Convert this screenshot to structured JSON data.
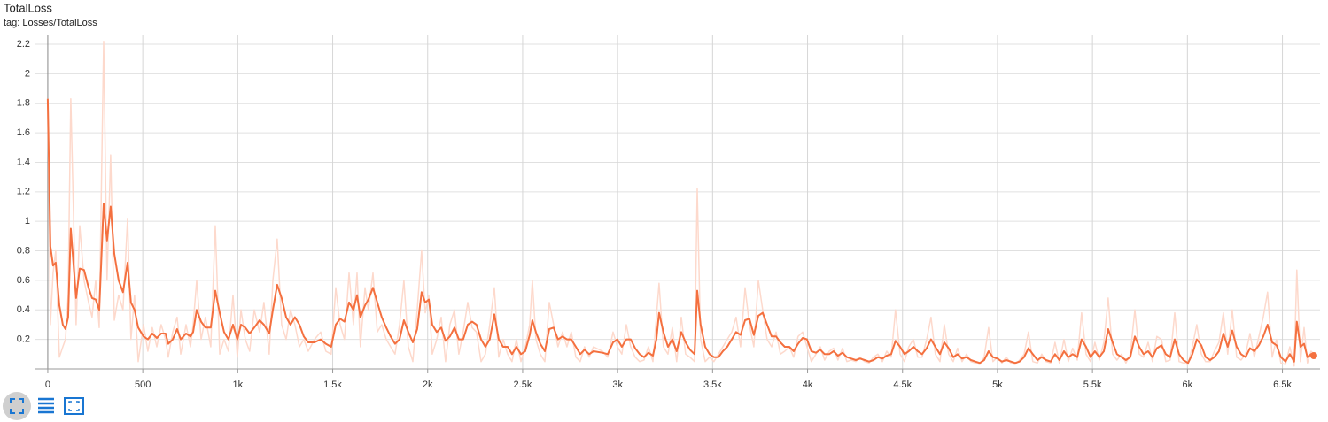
{
  "chart_data": {
    "type": "line",
    "title": "TotalLoss",
    "subtitle": "tag: Losses/TotalLoss",
    "grid": true,
    "xlim": [
      -65,
      6698
    ],
    "ylim": [
      0,
      2.26
    ],
    "xticks": [
      0,
      500,
      {
        "value": 1000,
        "label": "1k"
      },
      {
        "value": 1500,
        "label": "1.5k"
      },
      {
        "value": 2000,
        "label": "2k"
      },
      {
        "value": 2500,
        "label": "2.5k"
      },
      {
        "value": 3000,
        "label": "3k"
      },
      {
        "value": 3500,
        "label": "3.5k"
      },
      {
        "value": 4000,
        "label": "4k"
      },
      {
        "value": 4500,
        "label": "4.5k"
      },
      {
        "value": 5000,
        "label": "5k"
      },
      {
        "value": 5500,
        "label": "5.5k"
      },
      {
        "value": 6000,
        "label": "6k"
      },
      {
        "value": 6500,
        "label": "6.5k"
      }
    ],
    "yticks": [
      0.2,
      0.4,
      0.6,
      0.8,
      1,
      1.2,
      1.4,
      1.6,
      1.8,
      2,
      2.2
    ],
    "x": [
      0,
      14,
      28,
      42,
      61,
      79,
      93,
      107,
      121,
      149,
      168,
      191,
      215,
      233,
      252,
      271,
      294,
      312,
      331,
      350,
      373,
      396,
      420,
      438,
      457,
      476,
      504,
      527,
      550,
      574,
      597,
      620,
      634,
      658,
      681,
      700,
      728,
      751,
      765,
      784,
      807,
      830,
      858,
      882,
      905,
      928,
      951,
      975,
      998,
      1017,
      1040,
      1063,
      1087,
      1115,
      1138,
      1166,
      1185,
      1208,
      1231,
      1255,
      1278,
      1301,
      1325,
      1348,
      1371,
      1404,
      1437,
      1464,
      1492,
      1516,
      1539,
      1562,
      1586,
      1609,
      1628,
      1646,
      1670,
      1688,
      1712,
      1735,
      1758,
      1782,
      1805,
      1828,
      1852,
      1875,
      1898,
      1922,
      1945,
      1968,
      1987,
      2006,
      2024,
      2048,
      2071,
      2094,
      2117,
      2141,
      2164,
      2187,
      2211,
      2234,
      2257,
      2281,
      2304,
      2327,
      2351,
      2374,
      2397,
      2421,
      2444,
      2467,
      2491,
      2514,
      2537,
      2551,
      2570,
      2593,
      2617,
      2640,
      2663,
      2686,
      2710,
      2733,
      2756,
      2780,
      2803,
      2826,
      2850,
      2873,
      2920,
      2948,
      2976,
      2999,
      3022,
      3046,
      3069,
      3092,
      3116,
      3139,
      3162,
      3186,
      3204,
      3218,
      3241,
      3265,
      3288,
      3311,
      3335,
      3358,
      3381,
      3405,
      3419,
      3437,
      3461,
      3484,
      3507,
      3531,
      3554,
      3577,
      3601,
      3624,
      3647,
      3671,
      3694,
      3717,
      3741,
      3764,
      3787,
      3811,
      3834,
      3857,
      3880,
      3904,
      3927,
      3950,
      3974,
      3997,
      4020,
      4044,
      4067,
      4090,
      4114,
      4137,
      4160,
      4184,
      4207,
      4230,
      4254,
      4277,
      4300,
      4324,
      4347,
      4370,
      4394,
      4417,
      4440,
      4463,
      4487,
      4510,
      4533,
      4557,
      4580,
      4603,
      4627,
      4650,
      4673,
      4697,
      4720,
      4743,
      4767,
      4790,
      4813,
      4837,
      4860,
      4883,
      4907,
      4930,
      4953,
      4976,
      5000,
      5023,
      5046,
      5070,
      5093,
      5116,
      5140,
      5163,
      5186,
      5210,
      5233,
      5256,
      5280,
      5303,
      5326,
      5350,
      5373,
      5396,
      5420,
      5443,
      5466,
      5490,
      5513,
      5536,
      5560,
      5583,
      5606,
      5629,
      5653,
      5676,
      5699,
      5723,
      5746,
      5769,
      5793,
      5816,
      5839,
      5863,
      5886,
      5909,
      5933,
      5956,
      5979,
      6003,
      6026,
      6049,
      6073,
      6096,
      6119,
      6142,
      6166,
      6189,
      6212,
      6236,
      6259,
      6282,
      6306,
      6329,
      6352,
      6376,
      6399,
      6422,
      6446,
      6469,
      6492,
      6516,
      6539,
      6562,
      6576,
      6595,
      6614,
      6632,
      6651,
      6665
    ],
    "series": [
      {
        "color": "#fdd9cc",
        "values": [
          1.83,
          0.3,
          0.65,
          0.8,
          0.08,
          0.15,
          0.2,
          0.5,
          1.83,
          0.3,
          0.97,
          0.6,
          0.45,
          0.35,
          0.6,
          0.28,
          2.22,
          0.6,
          1.45,
          0.33,
          0.5,
          0.4,
          1.02,
          0.2,
          0.5,
          0.05,
          0.3,
          0.12,
          0.28,
          0.15,
          0.3,
          0.2,
          0.08,
          0.25,
          0.35,
          0.1,
          0.3,
          0.15,
          0.3,
          0.6,
          0.2,
          0.35,
          0.15,
          0.97,
          0.1,
          0.2,
          0.12,
          0.5,
          0.08,
          0.4,
          0.2,
          0.12,
          0.4,
          0.25,
          0.45,
          0.1,
          0.6,
          0.88,
          0.3,
          0.2,
          0.4,
          0.3,
          0.15,
          0.2,
          0.12,
          0.2,
          0.25,
          0.12,
          0.1,
          0.55,
          0.3,
          0.2,
          0.65,
          0.3,
          0.65,
          0.15,
          0.55,
          0.4,
          0.65,
          0.25,
          0.3,
          0.2,
          0.15,
          0.1,
          0.3,
          0.6,
          0.15,
          0.05,
          0.4,
          0.8,
          0.38,
          0.5,
          0.1,
          0.2,
          0.35,
          0.05,
          0.3,
          0.4,
          0.1,
          0.25,
          0.45,
          0.28,
          0.25,
          0.05,
          0.1,
          0.3,
          0.55,
          0.08,
          0.2,
          0.1,
          0.05,
          0.2,
          0.05,
          0.15,
          0.3,
          0.6,
          0.2,
          0.1,
          0.05,
          0.45,
          0.3,
          0.15,
          0.25,
          0.15,
          0.25,
          0.08,
          0.05,
          0.15,
          0.08,
          0.15,
          0.12,
          0.08,
          0.25,
          0.15,
          0.1,
          0.3,
          0.15,
          0.08,
          0.05,
          0.06,
          0.15,
          0.05,
          0.35,
          0.58,
          0.15,
          0.1,
          0.28,
          0.05,
          0.35,
          0.1,
          0.08,
          0.05,
          1.22,
          0.2,
          0.05,
          0.08,
          0.05,
          0.1,
          0.15,
          0.2,
          0.25,
          0.35,
          0.15,
          0.55,
          0.3,
          0.15,
          0.6,
          0.4,
          0.2,
          0.15,
          0.25,
          0.1,
          0.12,
          0.15,
          0.08,
          0.22,
          0.25,
          0.15,
          0.05,
          0.1,
          0.15,
          0.06,
          0.12,
          0.14,
          0.06,
          0.14,
          0.05,
          0.06,
          0.05,
          0.08,
          0.05,
          0.04,
          0.08,
          0.1,
          0.05,
          0.12,
          0.08,
          0.4,
          0.1,
          0.05,
          0.15,
          0.2,
          0.08,
          0.08,
          0.2,
          0.35,
          0.1,
          0.05,
          0.3,
          0.1,
          0.05,
          0.14,
          0.05,
          0.1,
          0.05,
          0.04,
          0.03,
          0.08,
          0.28,
          0.05,
          0.08,
          0.04,
          0.08,
          0.04,
          0.03,
          0.06,
          0.1,
          0.25,
          0.05,
          0.04,
          0.1,
          0.05,
          0.04,
          0.18,
          0.04,
          0.2,
          0.05,
          0.14,
          0.06,
          0.38,
          0.1,
          0.05,
          0.18,
          0.06,
          0.18,
          0.48,
          0.1,
          0.06,
          0.1,
          0.04,
          0.1,
          0.4,
          0.1,
          0.08,
          0.18,
          0.05,
          0.22,
          0.2,
          0.05,
          0.06,
          0.38,
          0.05,
          0.04,
          0.03,
          0.15,
          0.3,
          0.1,
          0.05,
          0.05,
          0.12,
          0.18,
          0.38,
          0.1,
          0.4,
          0.08,
          0.06,
          0.1,
          0.24,
          0.08,
          0.22,
          0.35,
          0.52,
          0.08,
          0.2,
          0.04,
          0.03,
          0.15,
          0.02,
          0.67,
          0.05,
          0.28,
          0.04,
          0.12,
          0.1
        ]
      },
      {
        "color": "#f4703f",
        "values": [
          1.83,
          0.83,
          0.7,
          0.72,
          0.43,
          0.3,
          0.27,
          0.35,
          0.95,
          0.48,
          0.68,
          0.67,
          0.55,
          0.48,
          0.47,
          0.4,
          1.12,
          0.87,
          1.1,
          0.78,
          0.6,
          0.52,
          0.72,
          0.45,
          0.4,
          0.28,
          0.22,
          0.2,
          0.24,
          0.21,
          0.24,
          0.24,
          0.17,
          0.2,
          0.27,
          0.2,
          0.24,
          0.22,
          0.25,
          0.4,
          0.32,
          0.28,
          0.28,
          0.53,
          0.38,
          0.25,
          0.2,
          0.3,
          0.2,
          0.3,
          0.28,
          0.24,
          0.28,
          0.33,
          0.3,
          0.24,
          0.4,
          0.57,
          0.48,
          0.35,
          0.3,
          0.35,
          0.3,
          0.22,
          0.18,
          0.18,
          0.2,
          0.17,
          0.15,
          0.3,
          0.34,
          0.32,
          0.45,
          0.4,
          0.5,
          0.35,
          0.43,
          0.47,
          0.55,
          0.45,
          0.35,
          0.28,
          0.22,
          0.17,
          0.2,
          0.33,
          0.25,
          0.18,
          0.27,
          0.52,
          0.45,
          0.47,
          0.3,
          0.25,
          0.28,
          0.19,
          0.22,
          0.28,
          0.2,
          0.2,
          0.3,
          0.32,
          0.3,
          0.2,
          0.15,
          0.2,
          0.37,
          0.2,
          0.15,
          0.15,
          0.1,
          0.15,
          0.1,
          0.12,
          0.23,
          0.33,
          0.25,
          0.17,
          0.12,
          0.27,
          0.28,
          0.2,
          0.22,
          0.2,
          0.2,
          0.15,
          0.1,
          0.13,
          0.1,
          0.12,
          0.11,
          0.1,
          0.18,
          0.2,
          0.15,
          0.2,
          0.2,
          0.14,
          0.1,
          0.08,
          0.11,
          0.09,
          0.2,
          0.38,
          0.25,
          0.15,
          0.2,
          0.12,
          0.25,
          0.18,
          0.13,
          0.1,
          0.53,
          0.3,
          0.15,
          0.1,
          0.08,
          0.08,
          0.12,
          0.15,
          0.2,
          0.25,
          0.23,
          0.33,
          0.34,
          0.23,
          0.36,
          0.38,
          0.3,
          0.22,
          0.22,
          0.18,
          0.15,
          0.15,
          0.12,
          0.17,
          0.21,
          0.2,
          0.12,
          0.11,
          0.13,
          0.1,
          0.1,
          0.12,
          0.09,
          0.11,
          0.08,
          0.07,
          0.06,
          0.07,
          0.06,
          0.05,
          0.06,
          0.08,
          0.07,
          0.09,
          0.1,
          0.19,
          0.15,
          0.1,
          0.12,
          0.15,
          0.12,
          0.1,
          0.14,
          0.2,
          0.15,
          0.1,
          0.18,
          0.14,
          0.08,
          0.1,
          0.07,
          0.08,
          0.06,
          0.05,
          0.04,
          0.06,
          0.12,
          0.08,
          0.07,
          0.05,
          0.06,
          0.05,
          0.04,
          0.05,
          0.08,
          0.14,
          0.1,
          0.06,
          0.08,
          0.06,
          0.05,
          0.1,
          0.06,
          0.12,
          0.08,
          0.1,
          0.08,
          0.2,
          0.15,
          0.08,
          0.12,
          0.08,
          0.12,
          0.27,
          0.18,
          0.1,
          0.08,
          0.06,
          0.08,
          0.22,
          0.15,
          0.1,
          0.12,
          0.08,
          0.14,
          0.16,
          0.1,
          0.08,
          0.2,
          0.1,
          0.06,
          0.04,
          0.1,
          0.2,
          0.16,
          0.08,
          0.06,
          0.08,
          0.12,
          0.24,
          0.15,
          0.26,
          0.15,
          0.1,
          0.08,
          0.14,
          0.12,
          0.16,
          0.22,
          0.3,
          0.18,
          0.16,
          0.08,
          0.05,
          0.1,
          0.05,
          0.32,
          0.15,
          0.17,
          0.08,
          0.1,
          0.09
        ]
      }
    ]
  }
}
